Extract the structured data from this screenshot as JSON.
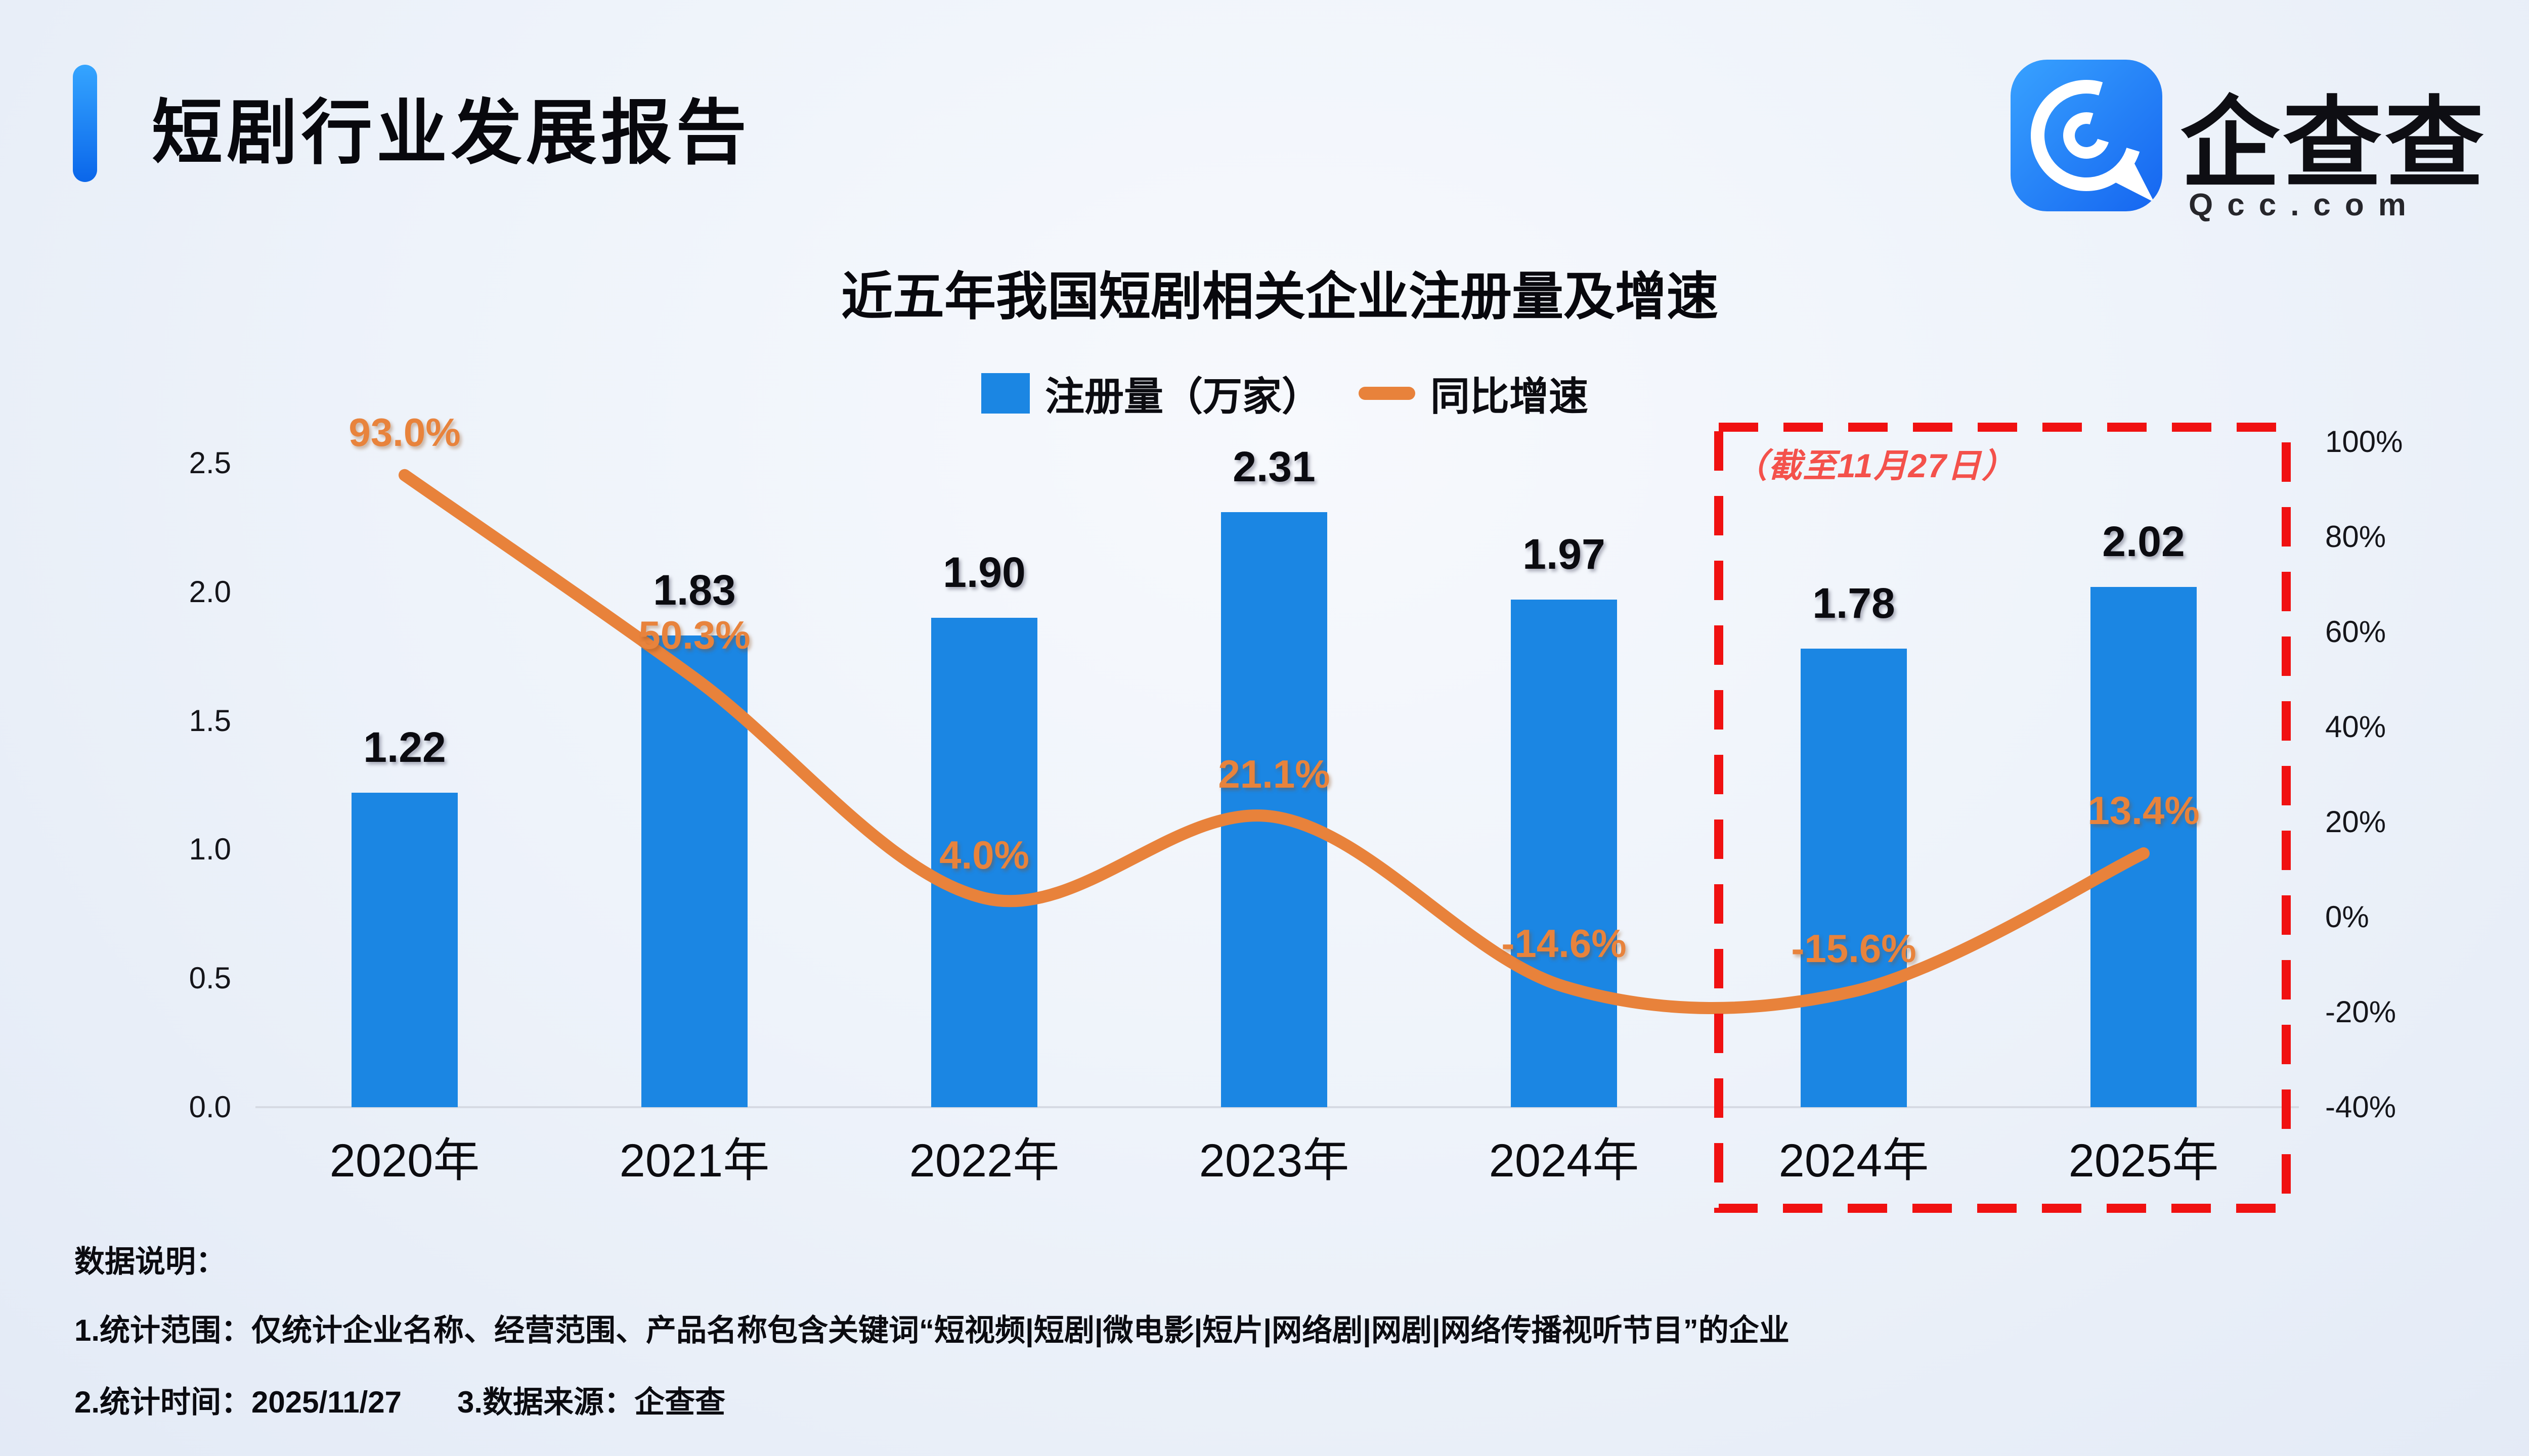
{
  "header": {
    "title": "短剧行业发展报告"
  },
  "logo": {
    "company": "企查查",
    "domain": "Qcc.com"
  },
  "chart_data": {
    "type": "bar",
    "title": "近五年我国短剧相关企业注册量及增速",
    "categories": [
      "2020年",
      "2021年",
      "2022年",
      "2023年",
      "2024年",
      "2024年",
      "2025年"
    ],
    "series": [
      {
        "name": "注册量（万家）",
        "type": "bar",
        "axis": "left",
        "color": "#1B86E3",
        "values": [
          1.22,
          1.83,
          1.9,
          2.31,
          1.97,
          1.78,
          2.02
        ],
        "labels": [
          "1.22",
          "1.83",
          "1.90",
          "2.31",
          "1.97",
          "1.78",
          "2.02"
        ]
      },
      {
        "name": "同比增速",
        "type": "line",
        "axis": "right",
        "color": "#E8823B",
        "values": [
          93.0,
          50.3,
          4.0,
          21.1,
          -14.6,
          -15.6,
          13.4
        ],
        "labels": [
          "93.0%",
          "50.3%",
          "4.0%",
          "21.1%",
          "-14.6%",
          "-15.6%",
          "13.4%"
        ]
      }
    ],
    "left_axis": {
      "min": 0,
      "max": 2.5,
      "ticks": [
        "2.5",
        "2.0",
        "1.5",
        "1.0",
        "0.5",
        "0.0"
      ]
    },
    "right_axis": {
      "min": -40,
      "max": 100,
      "ticks": [
        "100%",
        "80%",
        "60%",
        "40%",
        "20%",
        "0%",
        "-20%",
        "-40%"
      ]
    },
    "legend_position": "top",
    "grid": false,
    "annotation": {
      "label": "（截至11月27日）",
      "box_color": "#F01111",
      "text_color": "#F4514B",
      "covers_categories": [
        "2024年",
        "2025年"
      ]
    }
  },
  "footer": {
    "heading": "数据说明：",
    "note1": "1.统计范围：仅统计企业名称、经营范围、产品名称包含关键词“短视频|短剧|微电影|短片|网络剧|网剧|网络传播视听节目”的企业",
    "note2_time": "2.统计时间：2025/11/27",
    "note3_source": "3.数据来源：企查查"
  }
}
